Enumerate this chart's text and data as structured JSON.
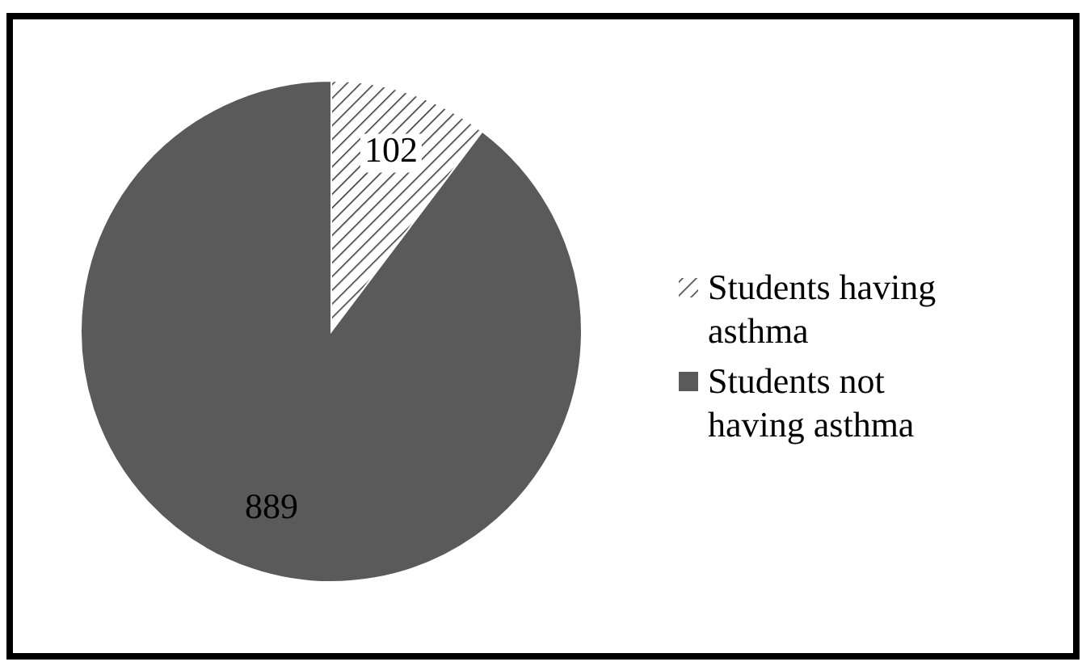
{
  "chart_data": {
    "type": "pie",
    "categories": [
      "Students having asthma",
      "Students not having asthma"
    ],
    "values": [
      102,
      889
    ],
    "colors": [
      "#ffffff",
      "#5a5a5a"
    ],
    "data_labels": true,
    "legend": "right"
  }
}
